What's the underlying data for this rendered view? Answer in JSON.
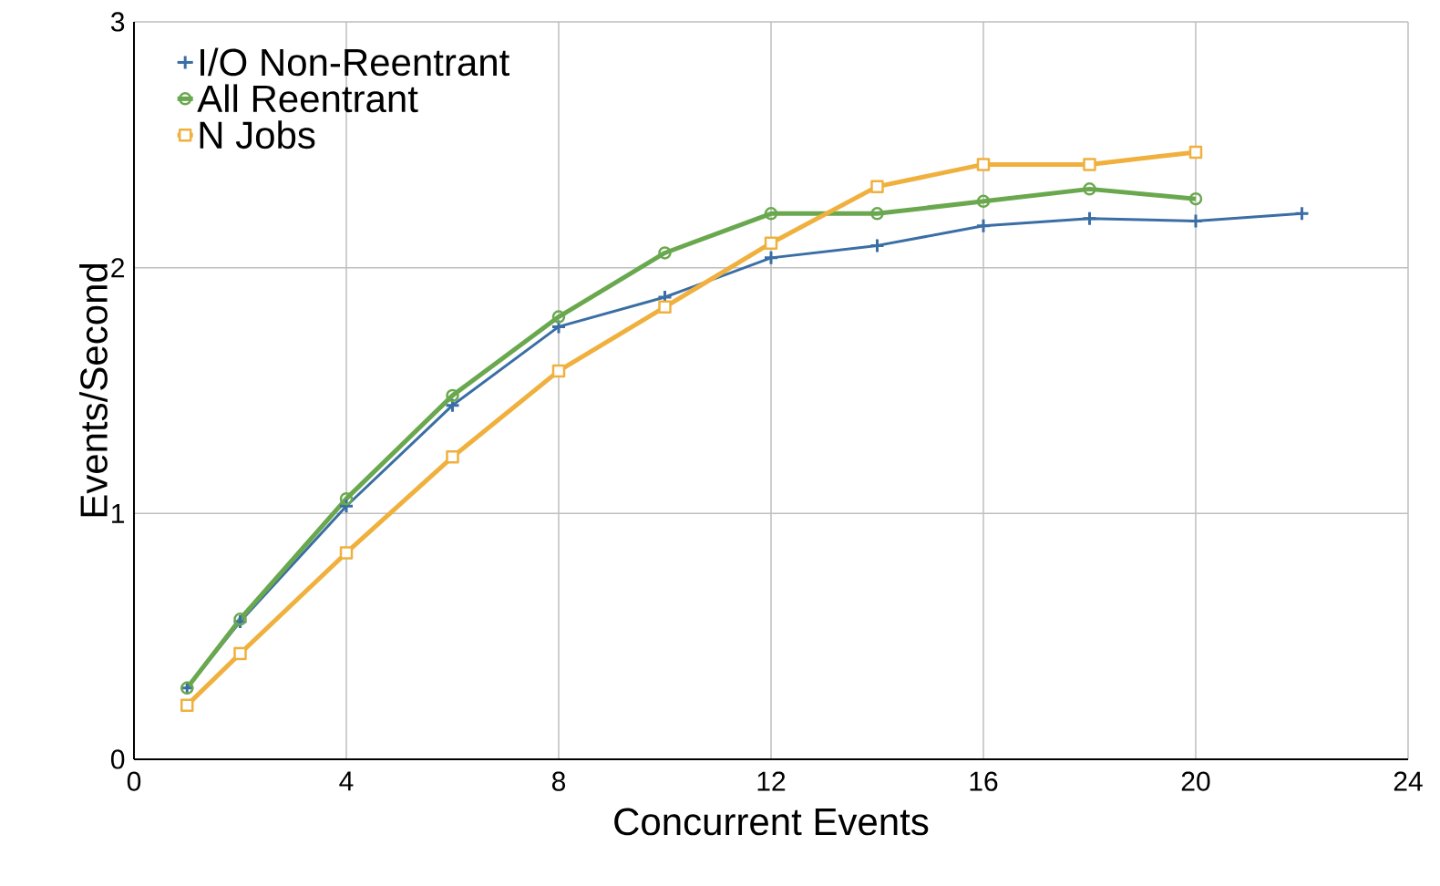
{
  "chart_data": {
    "type": "line",
    "xlabel": "Concurrent Events",
    "ylabel": "Events/Second",
    "xlim": [
      0,
      24
    ],
    "ylim": [
      0,
      3
    ],
    "xticks": [
      0,
      4,
      8,
      12,
      16,
      20,
      24
    ],
    "yticks": [
      0,
      1,
      2,
      3
    ],
    "grid": true,
    "legend": "top left",
    "line_style": "solid",
    "series": [
      {
        "name": "I/O Non-Reentrant",
        "color": "#3a6ea5",
        "marker": "cross",
        "x": [
          1,
          2,
          4,
          6,
          8,
          10,
          12,
          14,
          16,
          18,
          20,
          22
        ],
        "values": [
          0.29,
          0.56,
          1.03,
          1.44,
          1.76,
          1.88,
          2.04,
          2.09,
          2.17,
          2.2,
          2.19,
          2.22
        ]
      },
      {
        "name": "All Reentrant",
        "color": "#6aa84f",
        "marker": "circle",
        "x": [
          1,
          2,
          4,
          6,
          8,
          10,
          12,
          14,
          16,
          18,
          20
        ],
        "values": [
          0.29,
          0.57,
          1.06,
          1.48,
          1.8,
          2.06,
          2.22,
          2.22,
          2.27,
          2.32,
          2.28
        ]
      },
      {
        "name": "N Jobs",
        "color": "#f0b03e",
        "marker": "square",
        "x": [
          1,
          2,
          4,
          6,
          8,
          10,
          12,
          14,
          16,
          18,
          20
        ],
        "values": [
          0.22,
          0.43,
          0.84,
          1.23,
          1.58,
          1.84,
          2.1,
          2.33,
          2.42,
          2.42,
          2.47
        ]
      }
    ]
  }
}
